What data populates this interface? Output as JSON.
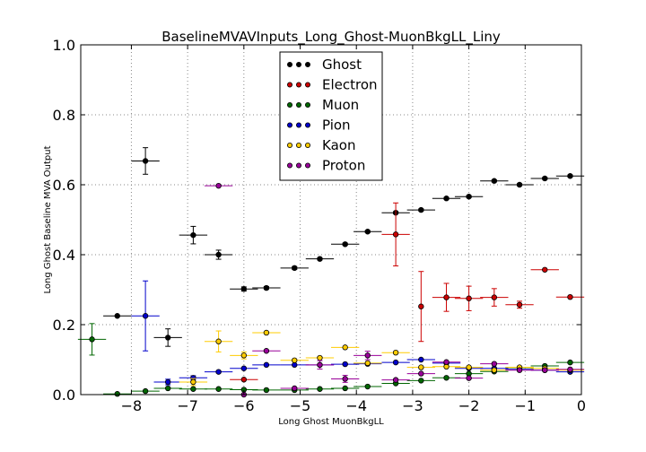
{
  "chart_data": {
    "type": "scatter",
    "title": "BaselineMVAVInputs_Long_Ghost-MuonBkgLL_Liny",
    "xlabel": "Long Ghost MuonBkgLL",
    "ylabel": "Long Ghost Baseline MVA Output",
    "xlim": [
      -8.9,
      0
    ],
    "ylim": [
      0,
      1.0
    ],
    "x_ticks": [
      "−8",
      "−7",
      "−6",
      "−5",
      "−4",
      "−3",
      "−2",
      "−1",
      "0"
    ],
    "x_tick_values": [
      -8,
      -7,
      -6,
      -5,
      -4,
      -3,
      -2,
      -1,
      0
    ],
    "y_ticks": [
      "0.0",
      "0.2",
      "0.4",
      "0.6",
      "0.8",
      "1.0"
    ],
    "y_tick_values": [
      0,
      0.2,
      0.4,
      0.6,
      0.8,
      1.0
    ],
    "grid": true,
    "legend_position": "top-center",
    "series": [
      {
        "name": "Ghost",
        "color": "#000000",
        "points": [
          {
            "x": -8.25,
            "y": 0.225,
            "xerr": 0.25,
            "yerr": 0.0
          },
          {
            "x": -7.75,
            "y": 0.668,
            "xerr": 0.25,
            "yerr": 0.038
          },
          {
            "x": -7.35,
            "y": 0.163,
            "xerr": 0.25,
            "yerr": 0.025
          },
          {
            "x": -6.9,
            "y": 0.456,
            "xerr": 0.25,
            "yerr": 0.025
          },
          {
            "x": -6.45,
            "y": 0.4,
            "xerr": 0.25,
            "yerr": 0.013
          },
          {
            "x": -6.0,
            "y": 0.302,
            "xerr": 0.25,
            "yerr": 0.006
          },
          {
            "x": -5.6,
            "y": 0.305,
            "xerr": 0.25,
            "yerr": 0.004
          },
          {
            "x": -5.1,
            "y": 0.362,
            "xerr": 0.25,
            "yerr": 0.004
          },
          {
            "x": -4.65,
            "y": 0.388,
            "xerr": 0.25,
            "yerr": 0.003
          },
          {
            "x": -4.2,
            "y": 0.43,
            "xerr": 0.25,
            "yerr": 0.003
          },
          {
            "x": -3.8,
            "y": 0.466,
            "xerr": 0.25,
            "yerr": 0.003
          },
          {
            "x": -3.3,
            "y": 0.52,
            "xerr": 0.25,
            "yerr": 0.003
          },
          {
            "x": -2.85,
            "y": 0.528,
            "xerr": 0.25,
            "yerr": 0.003
          },
          {
            "x": -2.4,
            "y": 0.561,
            "xerr": 0.25,
            "yerr": 0.003
          },
          {
            "x": -2.0,
            "y": 0.566,
            "xerr": 0.25,
            "yerr": 0.003
          },
          {
            "x": -1.55,
            "y": 0.611,
            "xerr": 0.25,
            "yerr": 0.003
          },
          {
            "x": -1.1,
            "y": 0.6,
            "xerr": 0.25,
            "yerr": 0.003
          },
          {
            "x": -0.65,
            "y": 0.618,
            "xerr": 0.25,
            "yerr": 0.003
          },
          {
            "x": -0.2,
            "y": 0.625,
            "xerr": 0.25,
            "yerr": 0.003
          }
        ]
      },
      {
        "name": "Electron",
        "color": "#cc0000",
        "points": [
          {
            "x": -6.0,
            "y": 0.043,
            "xerr": 0.25,
            "yerr": 0.0
          },
          {
            "x": -3.3,
            "y": 0.458,
            "xerr": 0.25,
            "yerr": 0.09
          },
          {
            "x": -2.85,
            "y": 0.252,
            "xerr": 0.0,
            "yerr": 0.1
          },
          {
            "x": -2.4,
            "y": 0.278,
            "xerr": 0.25,
            "yerr": 0.04
          },
          {
            "x": -2.0,
            "y": 0.275,
            "xerr": 0.25,
            "yerr": 0.035
          },
          {
            "x": -1.55,
            "y": 0.278,
            "xerr": 0.25,
            "yerr": 0.025
          },
          {
            "x": -1.1,
            "y": 0.257,
            "xerr": 0.25,
            "yerr": 0.01
          },
          {
            "x": -0.65,
            "y": 0.357,
            "xerr": 0.25,
            "yerr": 0.0
          },
          {
            "x": -0.2,
            "y": 0.279,
            "xerr": 0.25,
            "yerr": 0.0
          }
        ]
      },
      {
        "name": "Muon",
        "color": "#006600",
        "points": [
          {
            "x": -8.7,
            "y": 0.158,
            "xerr": 0.25,
            "yerr": 0.045
          },
          {
            "x": -8.25,
            "y": 0.002,
            "xerr": 0.25,
            "yerr": 0.0
          },
          {
            "x": -7.75,
            "y": 0.01,
            "xerr": 0.25,
            "yerr": 0.0
          },
          {
            "x": -7.35,
            "y": 0.018,
            "xerr": 0.25,
            "yerr": 0.0
          },
          {
            "x": -6.9,
            "y": 0.016,
            "xerr": 0.25,
            "yerr": 0.0
          },
          {
            "x": -6.45,
            "y": 0.016,
            "xerr": 0.25,
            "yerr": 0.0
          },
          {
            "x": -6.0,
            "y": 0.014,
            "xerr": 0.25,
            "yerr": 0.0
          },
          {
            "x": -5.6,
            "y": 0.013,
            "xerr": 0.25,
            "yerr": 0.0
          },
          {
            "x": -5.1,
            "y": 0.013,
            "xerr": 0.25,
            "yerr": 0.0
          },
          {
            "x": -4.65,
            "y": 0.016,
            "xerr": 0.25,
            "yerr": 0.0
          },
          {
            "x": -4.2,
            "y": 0.018,
            "xerr": 0.25,
            "yerr": 0.0
          },
          {
            "x": -3.8,
            "y": 0.023,
            "xerr": 0.25,
            "yerr": 0.0
          },
          {
            "x": -3.3,
            "y": 0.032,
            "xerr": 0.25,
            "yerr": 0.0
          },
          {
            "x": -2.85,
            "y": 0.04,
            "xerr": 0.25,
            "yerr": 0.0
          },
          {
            "x": -2.4,
            "y": 0.048,
            "xerr": 0.25,
            "yerr": 0.0
          },
          {
            "x": -2.0,
            "y": 0.06,
            "xerr": 0.25,
            "yerr": 0.0
          },
          {
            "x": -1.55,
            "y": 0.066,
            "xerr": 0.25,
            "yerr": 0.0
          },
          {
            "x": -1.1,
            "y": 0.077,
            "xerr": 0.25,
            "yerr": 0.0
          },
          {
            "x": -0.65,
            "y": 0.082,
            "xerr": 0.25,
            "yerr": 0.0
          },
          {
            "x": -0.2,
            "y": 0.092,
            "xerr": 0.25,
            "yerr": 0.0
          }
        ]
      },
      {
        "name": "Pion",
        "color": "#0000cc",
        "points": [
          {
            "x": -7.75,
            "y": 0.225,
            "xerr": 0.25,
            "yerr": 0.1
          },
          {
            "x": -7.35,
            "y": 0.036,
            "xerr": 0.25,
            "yerr": 0.008
          },
          {
            "x": -6.9,
            "y": 0.048,
            "xerr": 0.25,
            "yerr": 0.006
          },
          {
            "x": -6.45,
            "y": 0.065,
            "xerr": 0.25,
            "yerr": 0.003
          },
          {
            "x": -6.0,
            "y": 0.075,
            "xerr": 0.25,
            "yerr": 0.002
          },
          {
            "x": -5.6,
            "y": 0.085,
            "xerr": 0.25,
            "yerr": 0.0
          },
          {
            "x": -5.1,
            "y": 0.085,
            "xerr": 0.25,
            "yerr": 0.0
          },
          {
            "x": -4.65,
            "y": 0.085,
            "xerr": 0.25,
            "yerr": 0.0
          },
          {
            "x": -4.2,
            "y": 0.087,
            "xerr": 0.25,
            "yerr": 0.0
          },
          {
            "x": -3.8,
            "y": 0.088,
            "xerr": 0.25,
            "yerr": 0.0
          },
          {
            "x": -3.3,
            "y": 0.092,
            "xerr": 0.25,
            "yerr": 0.0
          },
          {
            "x": -2.85,
            "y": 0.1,
            "xerr": 0.25,
            "yerr": 0.0
          },
          {
            "x": -2.4,
            "y": 0.09,
            "xerr": 0.25,
            "yerr": 0.0
          },
          {
            "x": -2.0,
            "y": 0.075,
            "xerr": 0.25,
            "yerr": 0.0
          },
          {
            "x": -1.55,
            "y": 0.075,
            "xerr": 0.25,
            "yerr": 0.0
          },
          {
            "x": -1.1,
            "y": 0.072,
            "xerr": 0.25,
            "yerr": 0.0
          },
          {
            "x": -0.65,
            "y": 0.07,
            "xerr": 0.25,
            "yerr": 0.0
          },
          {
            "x": -0.2,
            "y": 0.065,
            "xerr": 0.25,
            "yerr": 0.0
          }
        ]
      },
      {
        "name": "Kaon",
        "color": "#ffcc00",
        "points": [
          {
            "x": -6.9,
            "y": 0.036,
            "xerr": 0.25,
            "yerr": 0.01
          },
          {
            "x": -6.45,
            "y": 0.152,
            "xerr": 0.25,
            "yerr": 0.03
          },
          {
            "x": -6.0,
            "y": 0.112,
            "xerr": 0.25,
            "yerr": 0.01
          },
          {
            "x": -5.6,
            "y": 0.177,
            "xerr": 0.25,
            "yerr": 0.0
          },
          {
            "x": -5.1,
            "y": 0.098,
            "xerr": 0.25,
            "yerr": 0.0
          },
          {
            "x": -4.65,
            "y": 0.105,
            "xerr": 0.25,
            "yerr": 0.0
          },
          {
            "x": -4.2,
            "y": 0.135,
            "xerr": 0.25,
            "yerr": 0.0
          },
          {
            "x": -3.8,
            "y": 0.09,
            "xerr": 0.25,
            "yerr": 0.0
          },
          {
            "x": -3.3,
            "y": 0.12,
            "xerr": 0.25,
            "yerr": 0.0
          },
          {
            "x": -2.85,
            "y": 0.078,
            "xerr": 0.25,
            "yerr": 0.0
          },
          {
            "x": -2.4,
            "y": 0.08,
            "xerr": 0.25,
            "yerr": 0.0
          },
          {
            "x": -2.0,
            "y": 0.078,
            "xerr": 0.25,
            "yerr": 0.0
          },
          {
            "x": -1.55,
            "y": 0.07,
            "xerr": 0.25,
            "yerr": 0.0
          },
          {
            "x": -1.1,
            "y": 0.078,
            "xerr": 0.25,
            "yerr": 0.0
          },
          {
            "x": -0.65,
            "y": 0.075,
            "xerr": 0.25,
            "yerr": 0.0
          },
          {
            "x": -0.2,
            "y": 0.07,
            "xerr": 0.25,
            "yerr": 0.0
          }
        ]
      },
      {
        "name": "Proton",
        "color": "#990099",
        "points": [
          {
            "x": -6.45,
            "y": 0.597,
            "xerr": 0.25,
            "yerr": 0.0
          },
          {
            "x": -6.0,
            "y": 0.0,
            "xerr": 0.25,
            "yerr": 0.0
          },
          {
            "x": -5.6,
            "y": 0.125,
            "xerr": 0.25,
            "yerr": 0.0
          },
          {
            "x": -5.1,
            "y": 0.018,
            "xerr": 0.25,
            "yerr": 0.0
          },
          {
            "x": -4.65,
            "y": 0.085,
            "xerr": 0.25,
            "yerr": 0.012
          },
          {
            "x": -4.2,
            "y": 0.045,
            "xerr": 0.25,
            "yerr": 0.01
          },
          {
            "x": -3.8,
            "y": 0.112,
            "xerr": 0.25,
            "yerr": 0.012
          },
          {
            "x": -3.3,
            "y": 0.042,
            "xerr": 0.25,
            "yerr": 0.0
          },
          {
            "x": -2.85,
            "y": 0.06,
            "xerr": 0.25,
            "yerr": 0.0
          },
          {
            "x": -2.4,
            "y": 0.093,
            "xerr": 0.25,
            "yerr": 0.0
          },
          {
            "x": -2.0,
            "y": 0.047,
            "xerr": 0.25,
            "yerr": 0.0
          },
          {
            "x": -1.55,
            "y": 0.088,
            "xerr": 0.25,
            "yerr": 0.0
          },
          {
            "x": -1.1,
            "y": 0.07,
            "xerr": 0.25,
            "yerr": 0.0
          },
          {
            "x": -0.65,
            "y": 0.07,
            "xerr": 0.25,
            "yerr": 0.0
          },
          {
            "x": -0.2,
            "y": 0.072,
            "xerr": 0.25,
            "yerr": 0.0
          }
        ]
      }
    ]
  }
}
